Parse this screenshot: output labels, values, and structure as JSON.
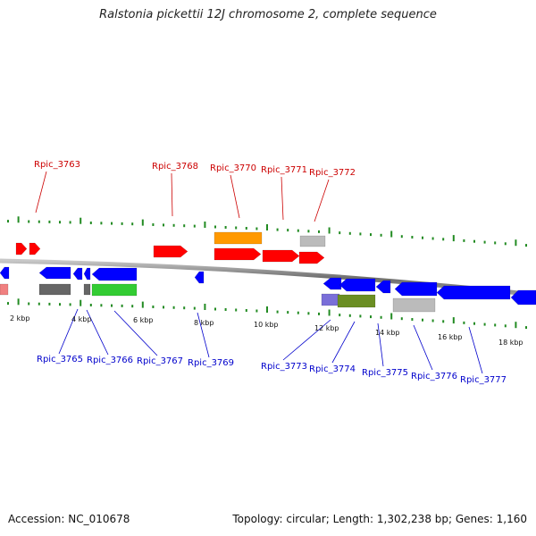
{
  "title": "Ralstonia pickettii 12J chromosome 2, complete sequence",
  "accession_text": "Accession: NC_010678",
  "summary_text": "Topology: circular; Length: 1,302,238 bp; Genes: 1,160",
  "colors": {
    "red": "#ff0000",
    "blue": "#0000ff",
    "orange": "#ff9900",
    "green": "#33cc33",
    "olive": "#6b8e23",
    "purple": "#7a6fd8",
    "gray": "#666666",
    "lightgray": "#bbbbbb",
    "pink": "#f08080",
    "tick": "#228b22",
    "backbone": "#808080",
    "top_label": "#cc0000",
    "bottom_label": "#0000cc"
  },
  "scale_labels": [
    "2 kbp",
    "4 kbp",
    "6 kbp",
    "8 kbp",
    "10 kbp",
    "12 kbp",
    "14 kbp",
    "16 kbp",
    "18 kbp"
  ],
  "top_labels": [
    "Rpic_3763",
    "Rpic_3768",
    "Rpic_3770",
    "Rpic_3771",
    "Rpic_3772"
  ],
  "bottom_labels": [
    "Rpic_3765",
    "Rpic_3766",
    "Rpic_3767",
    "Rpic_3769",
    "Rpic_3773",
    "Rpic_3774",
    "Rpic_3775",
    "Rpic_3776",
    "Rpic_3777"
  ]
}
